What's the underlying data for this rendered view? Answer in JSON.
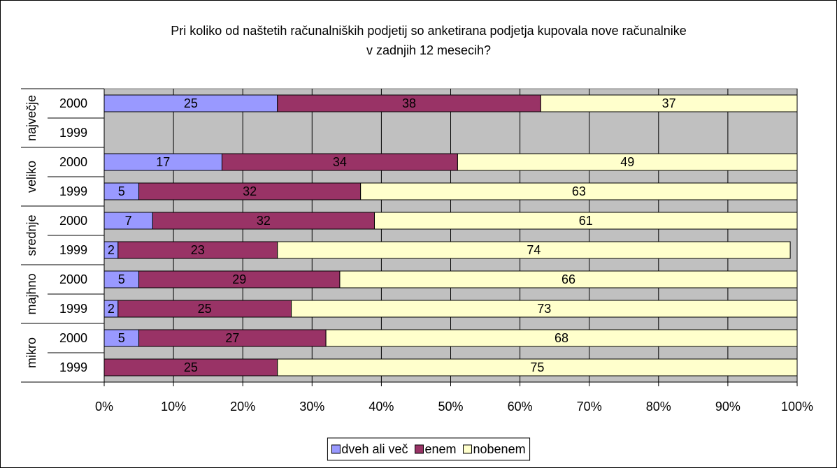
{
  "chart_data": {
    "type": "stacked-bar-horizontal",
    "title": [
      "Pri koliko od naštetih računalniških podjetij so anketirana podjetja kupovala nove računalnike",
      "v zadnjih 12 mesecih?"
    ],
    "groups": [
      {
        "name": "največje",
        "categories": [
          "2000",
          "1999"
        ]
      },
      {
        "name": "veliko",
        "categories": [
          "2000",
          "1999"
        ]
      },
      {
        "name": "srednje",
        "categories": [
          "2000",
          "1999"
        ]
      },
      {
        "name": "majhno",
        "categories": [
          "2000",
          "1999"
        ]
      },
      {
        "name": "mikro",
        "categories": [
          "2000",
          "1999"
        ]
      }
    ],
    "series": [
      {
        "name": "dveh ali več",
        "color": "#9999ff",
        "values": [
          25,
          null,
          17,
          5,
          7,
          2,
          5,
          2,
          5,
          null
        ]
      },
      {
        "name": "enem",
        "color": "#993366",
        "values": [
          38,
          null,
          34,
          32,
          32,
          23,
          29,
          25,
          27,
          25
        ]
      },
      {
        "name": "nobenem",
        "color": "#ffffcc",
        "values": [
          37,
          null,
          49,
          63,
          61,
          74,
          66,
          73,
          68,
          75
        ]
      }
    ],
    "xlim": [
      0,
      100
    ],
    "xticks": [
      {
        "value": 0,
        "label": "0%"
      },
      {
        "value": 10,
        "label": "10%"
      },
      {
        "value": 20,
        "label": "20%"
      },
      {
        "value": 30,
        "label": "30%"
      },
      {
        "value": 40,
        "label": "40%"
      },
      {
        "value": 50,
        "label": "50%"
      },
      {
        "value": 60,
        "label": "60%"
      },
      {
        "value": 70,
        "label": "70%"
      },
      {
        "value": 80,
        "label": "80%"
      },
      {
        "value": 90,
        "label": "90%"
      },
      {
        "value": 100,
        "label": "100%"
      }
    ],
    "grid": true,
    "legend": "bottom"
  }
}
